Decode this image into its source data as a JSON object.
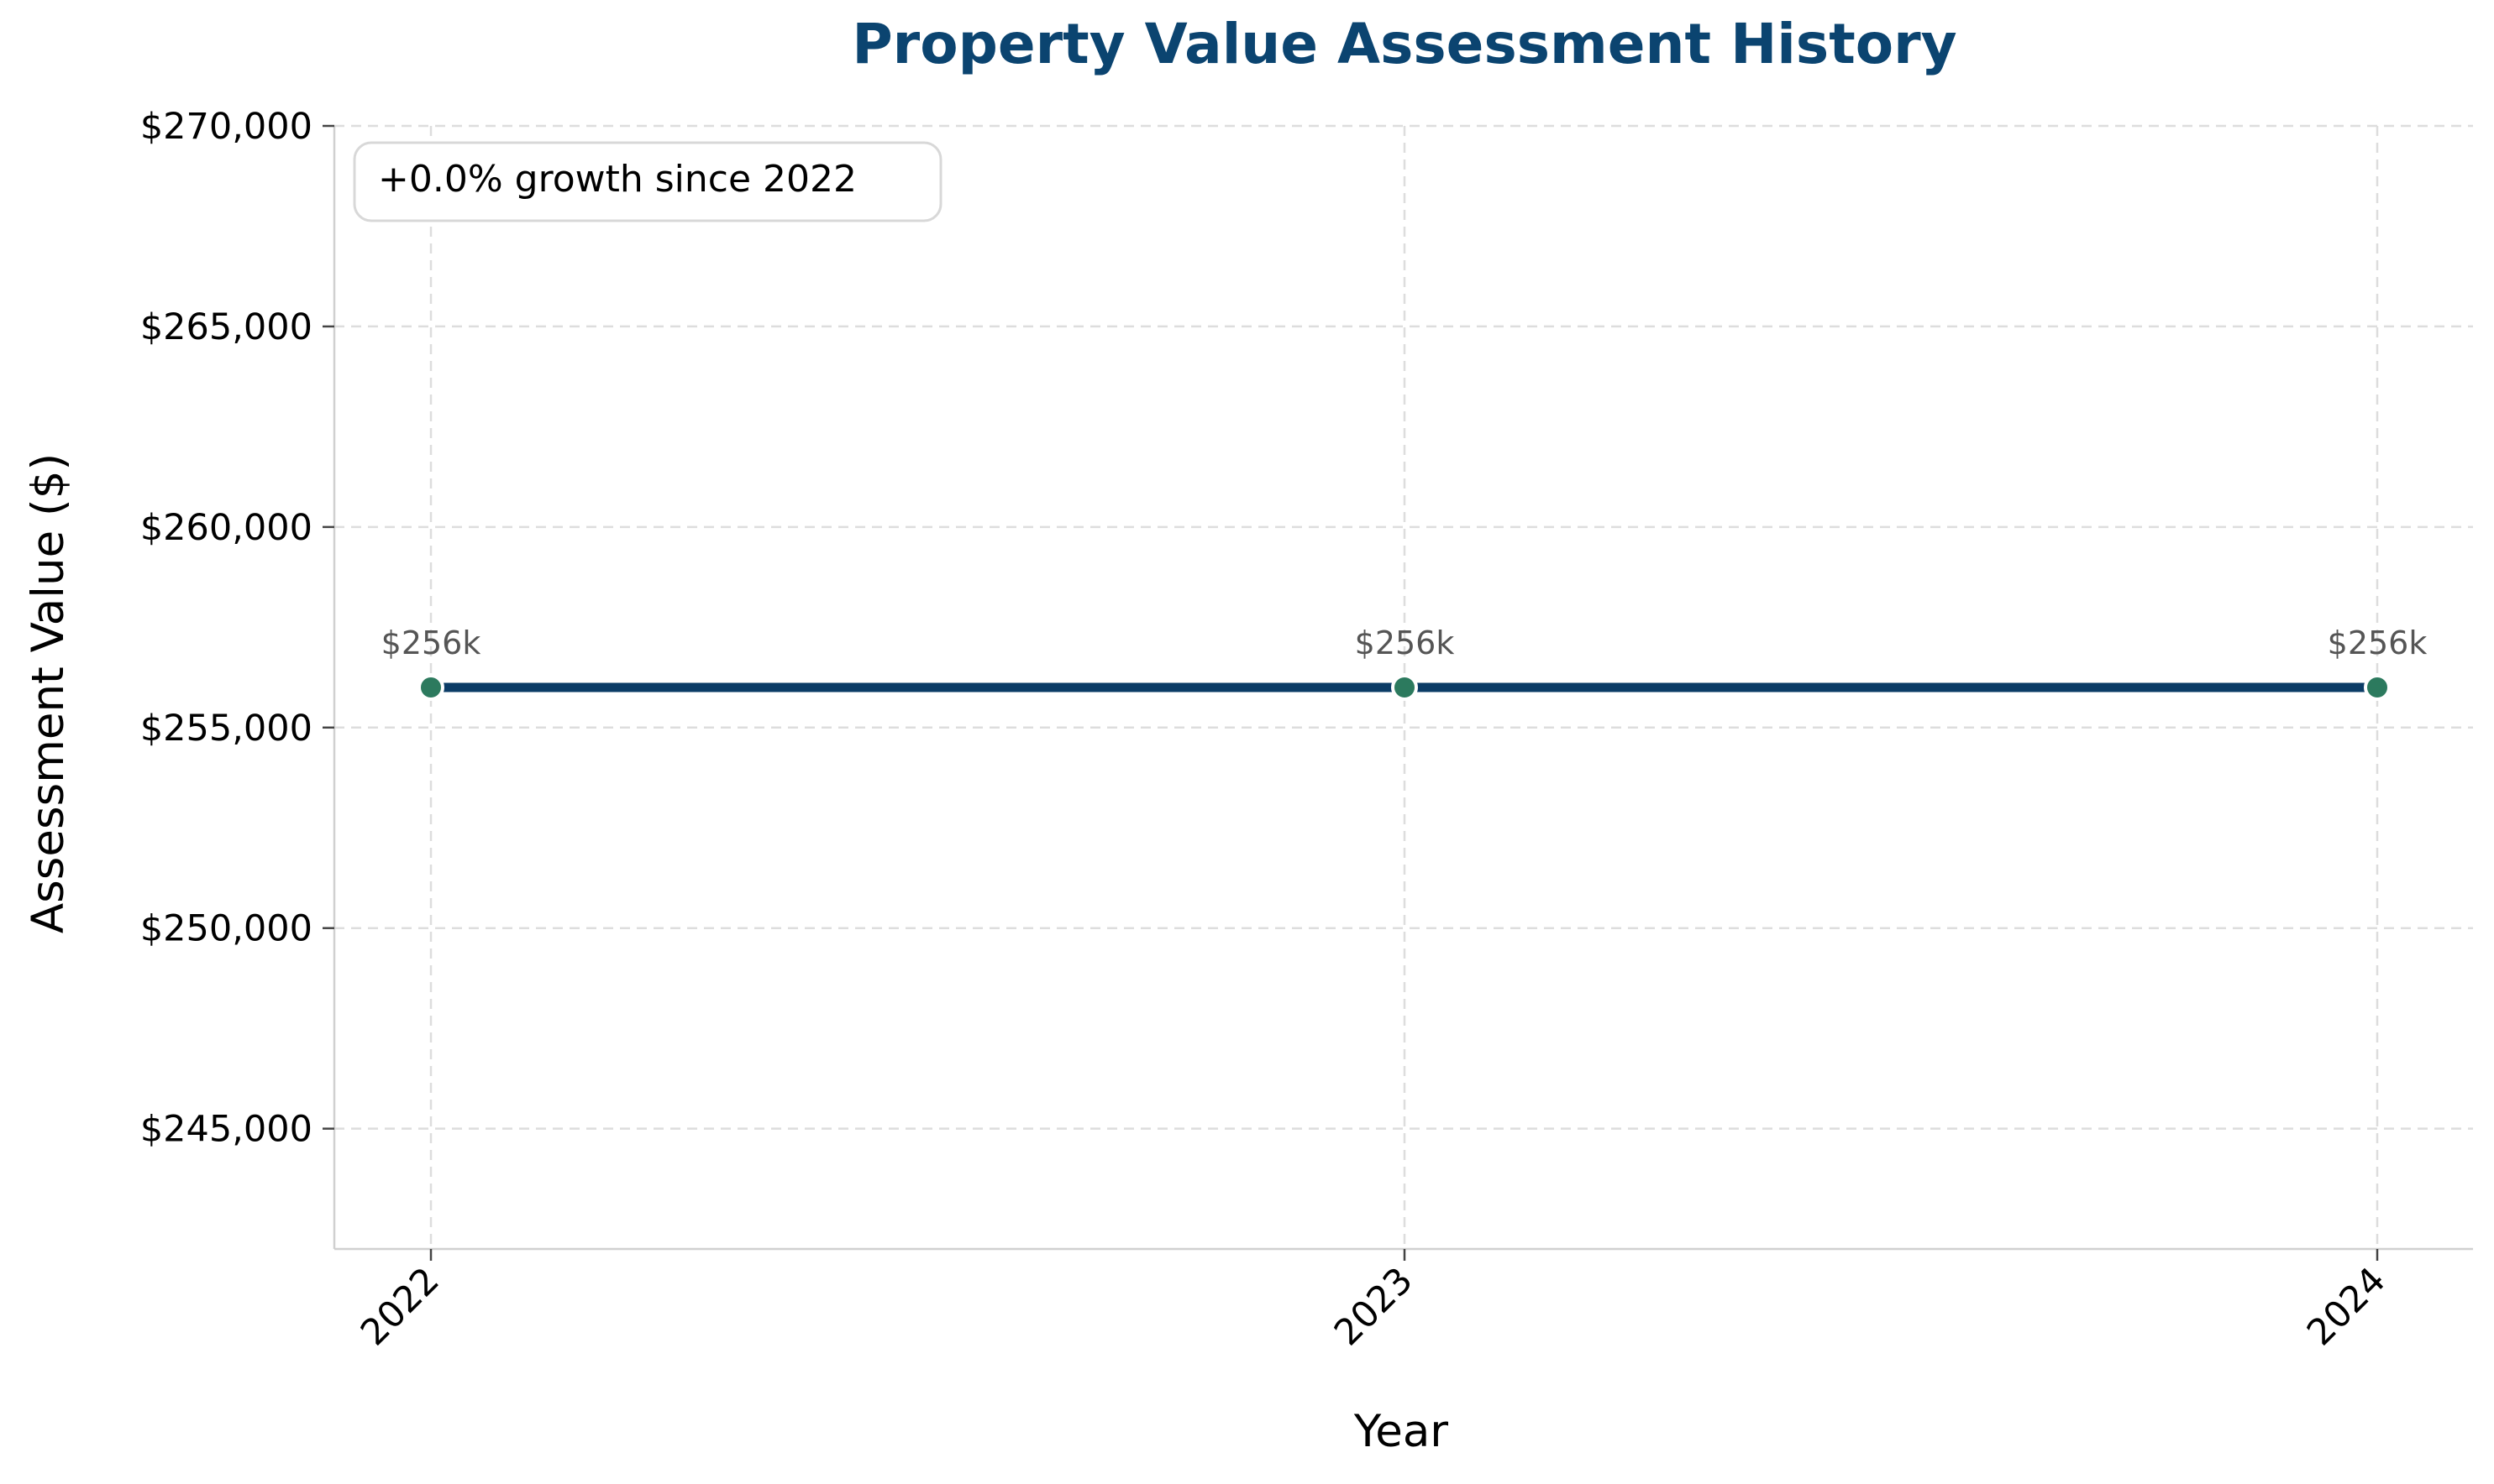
{
  "colors": {
    "title": "#0b4470",
    "line": "#0b3c66",
    "marker": "#2c7a5e",
    "grid": "#dddddd",
    "spine": "#d0d0d0",
    "data_label": "#555555"
  },
  "chart_data": {
    "type": "line",
    "title": "Property Value Assessment History",
    "xlabel": "Year",
    "ylabel": "Assessment Value ($)",
    "x": [
      "2022",
      "2023",
      "2024"
    ],
    "series": [
      {
        "values": [
          256000,
          256000,
          256000
        ]
      }
    ],
    "data_labels": [
      "$256k",
      "$256k",
      "$256k"
    ],
    "ylim": [
      242000,
      270000
    ],
    "yticks": [
      245000,
      250000,
      255000,
      260000,
      265000,
      270000
    ],
    "ytick_labels": [
      "$245,000",
      "$250,000",
      "$255,000",
      "$260,000",
      "$265,000",
      "$270,000"
    ],
    "xtick_labels": [
      "2022",
      "2023",
      "2024"
    ],
    "grid": true,
    "grid_style": "dashed",
    "annotation": "+0.0% growth since 2022",
    "annotation_placement": "top-left"
  }
}
